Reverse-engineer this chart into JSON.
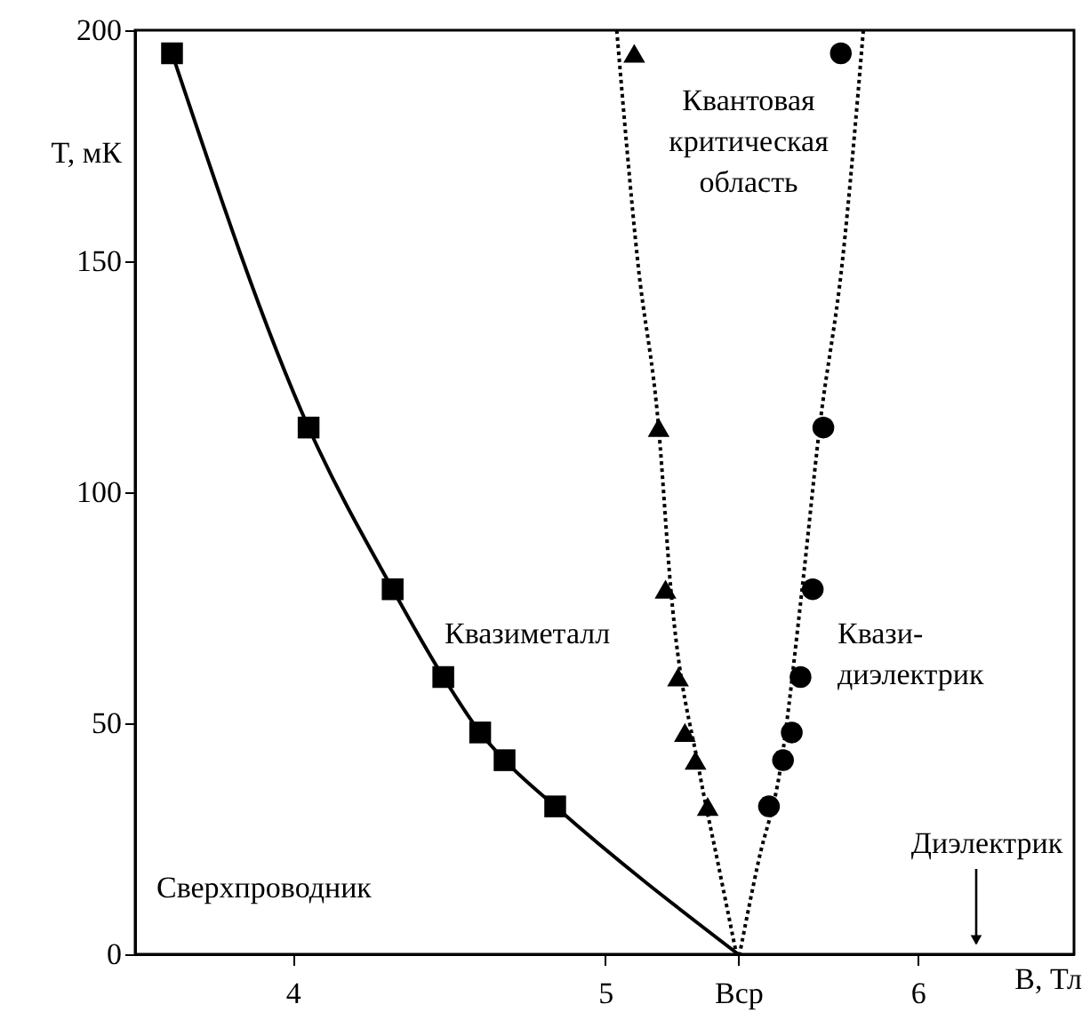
{
  "chart_data": {
    "type": "scatter",
    "xlabel": "B, Тл",
    "ylabel": "T, мК",
    "xlim": [
      3.496,
      6.5
    ],
    "ylim": [
      0,
      200
    ],
    "xticks": [
      4,
      5,
      {
        "value": 5.426,
        "label": "Bср"
      },
      6
    ],
    "yticks": [
      {
        "value": 0,
        "label": "0"
      },
      50,
      100,
      150,
      200
    ],
    "series": [
      {
        "type": "line",
        "color": "#000000",
        "marker": "none",
        "line_style": "solid",
        "x": [
          3.614,
          4.051,
          4.32,
          4.482,
          4.6,
          4.678,
          4.84,
          5.426
        ],
        "values": [
          195,
          114,
          79,
          60,
          48,
          42,
          32,
          0
        ]
      },
      {
        "type": "scatter",
        "color": "#000000",
        "marker": "square",
        "x": [
          3.614,
          4.051,
          4.32,
          4.482,
          4.6,
          4.678,
          4.84
        ],
        "values": [
          195,
          114,
          79,
          60,
          48,
          42,
          32
        ]
      },
      {
        "type": "scatter",
        "color": "#000000",
        "marker": "triangle",
        "x": [
          5.093,
          5.171,
          5.193,
          5.233,
          5.255,
          5.289,
          5.328
        ],
        "values": [
          195,
          114,
          79,
          60,
          48,
          42,
          32
        ]
      },
      {
        "type": "scatter",
        "color": "#000000",
        "marker": "circle",
        "x": [
          5.754,
          5.698,
          5.664,
          5.625,
          5.597,
          5.569,
          5.524
        ],
        "values": [
          195,
          114,
          79,
          60,
          48,
          42,
          32
        ]
      },
      {
        "type": "line",
        "color": "#000000",
        "marker": "none",
        "line_style": "dotted",
        "x": [
          5.037,
          5.104,
          5.171,
          5.21,
          5.3,
          5.36,
          5.42
        ],
        "values": [
          200,
          150,
          114,
          79,
          40,
          20,
          0
        ]
      },
      {
        "type": "line",
        "color": "#000000",
        "marker": "none",
        "line_style": "dotted",
        "x": [
          5.826,
          5.759,
          5.686,
          5.63,
          5.56,
          5.49,
          5.43
        ],
        "values": [
          200,
          150,
          114,
          79,
          40,
          20,
          0
        ]
      }
    ],
    "annotations": [
      "Квантовая\nкритическая\nобласть",
      "Квазиметалл",
      "Квази-\nдиэлектрик",
      "Сверхпроводник",
      "Диэлектрик"
    ]
  }
}
